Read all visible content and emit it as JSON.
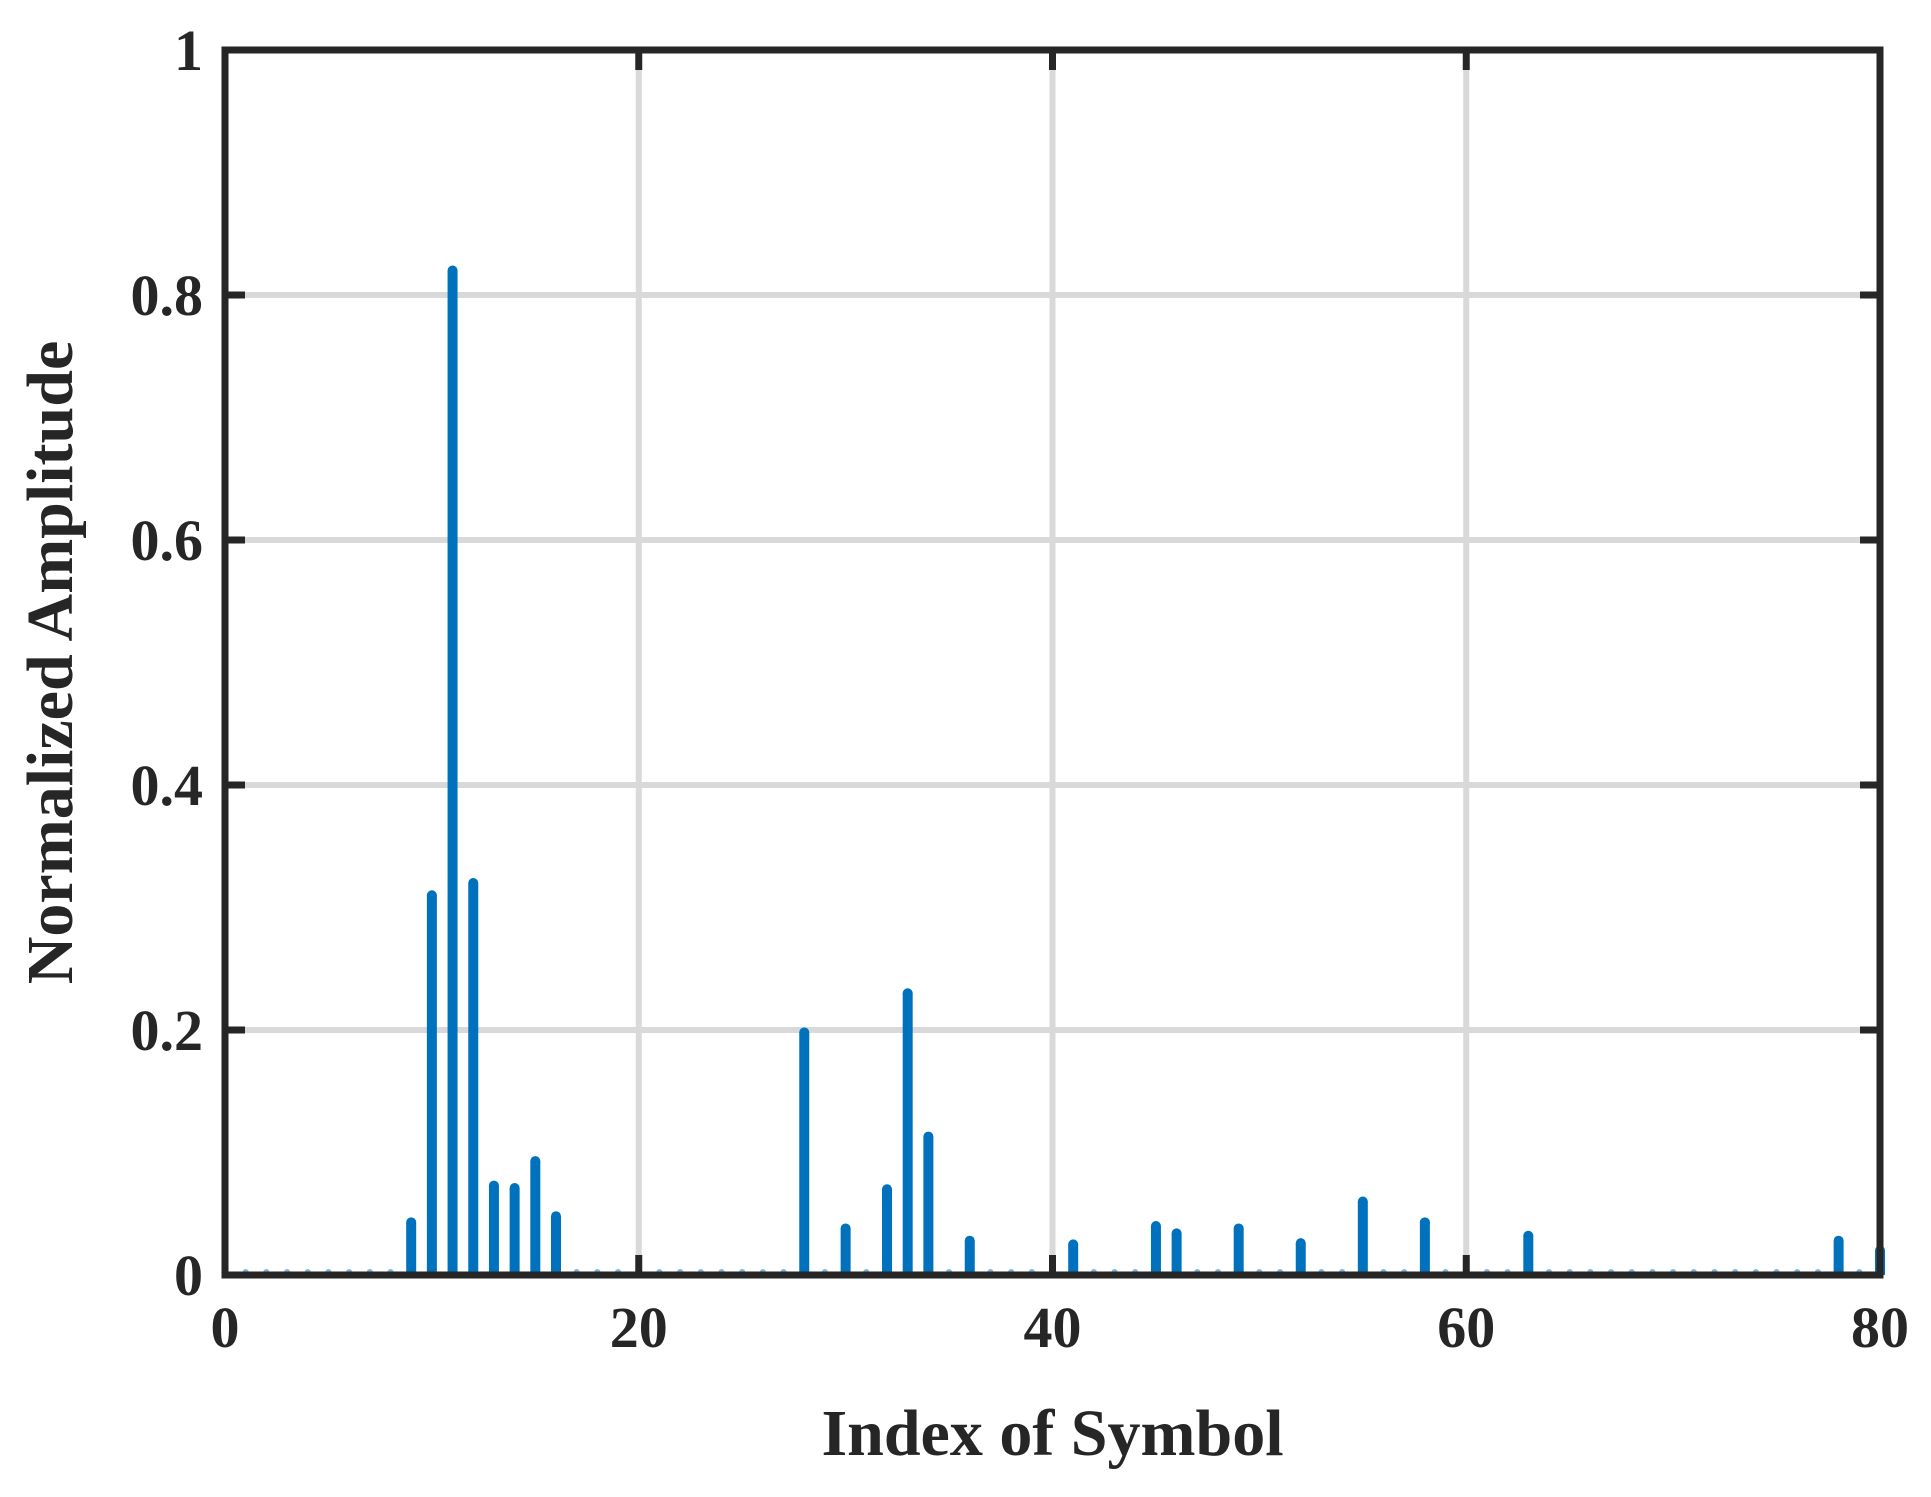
{
  "chart_data": {
    "type": "stem",
    "title": "",
    "xlabel": "Index of Symbol",
    "ylabel": "Normalized Amplitude",
    "xlim": [
      0,
      80
    ],
    "ylim": [
      0,
      1
    ],
    "xticks": [
      0,
      20,
      40,
      60,
      80
    ],
    "yticks": [
      0,
      0.2,
      0.4,
      0.6,
      0.8,
      1
    ],
    "xtick_labels": [
      "0",
      "20",
      "40",
      "60",
      "80"
    ],
    "ytick_labels": [
      "0",
      "0.2",
      "0.4",
      "0.6",
      "0.8",
      "1"
    ],
    "grid": true,
    "x": [
      1,
      2,
      3,
      4,
      5,
      6,
      7,
      8,
      9,
      10,
      11,
      12,
      13,
      14,
      15,
      16,
      17,
      18,
      19,
      20,
      21,
      22,
      23,
      24,
      25,
      26,
      27,
      28,
      29,
      30,
      31,
      32,
      33,
      34,
      35,
      36,
      37,
      38,
      39,
      40,
      41,
      42,
      43,
      44,
      45,
      46,
      47,
      48,
      49,
      50,
      51,
      52,
      53,
      54,
      55,
      56,
      57,
      58,
      59,
      60,
      61,
      62,
      63,
      64,
      65,
      66,
      67,
      68,
      69,
      70,
      71,
      72,
      73,
      74,
      75,
      76,
      77,
      78,
      79,
      80
    ],
    "y": [
      0,
      0,
      0,
      0,
      0,
      0,
      0,
      0,
      0.043,
      0.31,
      0.82,
      0.32,
      0.073,
      0.071,
      0.093,
      0.048,
      0,
      0,
      0,
      0,
      0,
      0,
      0,
      0,
      0,
      0,
      0,
      0.198,
      0,
      0.038,
      0,
      0.07,
      0.23,
      0.113,
      0,
      0.028,
      0,
      0,
      0,
      0,
      0.025,
      0,
      0,
      0,
      0.04,
      0.034,
      0,
      0,
      0.038,
      0,
      0,
      0.026,
      0,
      0,
      0.06,
      0,
      0,
      0.043,
      0,
      0,
      0,
      0,
      0.032,
      0,
      0,
      0,
      0,
      0,
      0,
      0,
      0,
      0,
      0,
      0,
      0,
      0,
      0,
      0.028,
      0,
      0.02
    ],
    "colors": {
      "stem": "#0072BD",
      "grid": "#d9d9d9",
      "axis": "#262626",
      "baseline_marker": "#7fb5de"
    }
  }
}
